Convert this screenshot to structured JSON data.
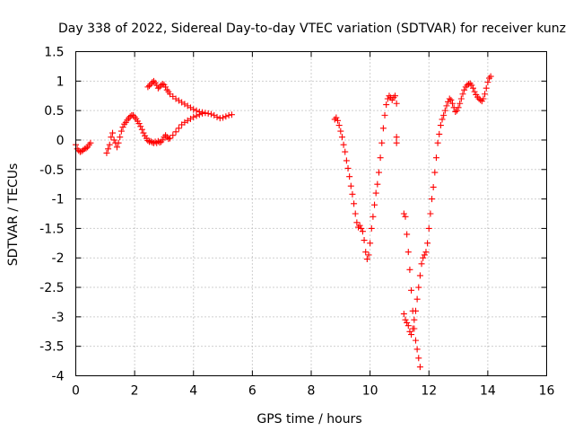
{
  "chart_data": {
    "type": "scatter",
    "title": "Day 338 of 2022, Sidereal Day-to-day VTEC variation (SDTVAR) for receiver kunz",
    "xlabel": "GPS time / hours",
    "ylabel": "SDTVAR / TECUs",
    "xlim": [
      0,
      16
    ],
    "ylim": [
      -4,
      1.5
    ],
    "xticks": [
      0,
      2,
      4,
      6,
      8,
      10,
      12,
      14,
      16
    ],
    "yticks": [
      -4,
      -3.5,
      -3,
      -2.5,
      -2,
      -1.5,
      -1,
      -0.5,
      0,
      0.5,
      1,
      1.5
    ],
    "grid": true,
    "marker": "+",
    "color": "#ff0000",
    "series": [
      {
        "name": "SDTVAR",
        "segments": [
          [
            [
              0.0,
              -0.08
            ],
            [
              0.05,
              -0.15
            ],
            [
              0.1,
              -0.18
            ],
            [
              0.15,
              -0.2
            ],
            [
              0.2,
              -0.19
            ],
            [
              0.25,
              -0.17
            ],
            [
              0.3,
              -0.15
            ],
            [
              0.35,
              -0.14
            ],
            [
              0.4,
              -0.12
            ],
            [
              0.45,
              -0.08
            ],
            [
              0.5,
              -0.05
            ]
          ],
          [
            [
              1.05,
              -0.22
            ],
            [
              1.1,
              -0.15
            ],
            [
              1.15,
              -0.08
            ],
            [
              1.2,
              0.05
            ],
            [
              1.25,
              0.12
            ],
            [
              1.3,
              0.0
            ],
            [
              1.35,
              -0.05
            ],
            [
              1.4,
              -0.12
            ],
            [
              1.45,
              -0.05
            ],
            [
              1.5,
              0.05
            ],
            [
              1.55,
              0.15
            ],
            [
              1.6,
              0.22
            ],
            [
              1.65,
              0.27
            ],
            [
              1.7,
              0.3
            ],
            [
              1.75,
              0.34
            ],
            [
              1.8,
              0.37
            ],
            [
              1.85,
              0.4
            ],
            [
              1.9,
              0.42
            ],
            [
              1.95,
              0.42
            ],
            [
              2.0,
              0.39
            ],
            [
              2.05,
              0.36
            ],
            [
              2.1,
              0.32
            ],
            [
              2.15,
              0.28
            ],
            [
              2.2,
              0.23
            ],
            [
              2.25,
              0.18
            ],
            [
              2.3,
              0.12
            ],
            [
              2.35,
              0.07
            ],
            [
              2.4,
              0.03
            ],
            [
              2.45,
              -0.01
            ],
            [
              2.5,
              -0.03
            ],
            [
              2.55,
              -0.02
            ],
            [
              2.6,
              -0.04
            ],
            [
              2.65,
              -0.05
            ],
            [
              2.7,
              -0.03
            ],
            [
              2.75,
              -0.05
            ],
            [
              2.8,
              -0.02
            ],
            [
              2.85,
              -0.04
            ],
            [
              2.9,
              -0.03
            ],
            [
              2.95,
              0.0
            ],
            [
              3.0,
              0.05
            ],
            [
              3.05,
              0.08
            ],
            [
              3.1,
              0.05
            ],
            [
              3.15,
              0.02
            ],
            [
              3.2,
              0.03
            ],
            [
              3.3,
              0.08
            ],
            [
              3.4,
              0.14
            ],
            [
              3.5,
              0.2
            ],
            [
              3.6,
              0.26
            ],
            [
              3.7,
              0.3
            ],
            [
              3.8,
              0.33
            ],
            [
              3.9,
              0.36
            ],
            [
              4.0,
              0.39
            ],
            [
              4.1,
              0.41
            ],
            [
              4.2,
              0.43
            ],
            [
              4.3,
              0.45
            ],
            [
              4.4,
              0.46
            ],
            [
              4.5,
              0.45
            ],
            [
              4.6,
              0.44
            ],
            [
              4.7,
              0.42
            ],
            [
              4.8,
              0.39
            ],
            [
              4.9,
              0.37
            ],
            [
              5.0,
              0.38
            ],
            [
              5.1,
              0.4
            ],
            [
              5.2,
              0.42
            ],
            [
              5.3,
              0.43
            ]
          ],
          [
            [
              2.45,
              0.9
            ],
            [
              2.5,
              0.92
            ],
            [
              2.55,
              0.95
            ],
            [
              2.6,
              0.98
            ],
            [
              2.65,
              1.0
            ],
            [
              2.7,
              0.97
            ],
            [
              2.75,
              0.93
            ],
            [
              2.8,
              0.88
            ],
            [
              2.85,
              0.9
            ],
            [
              2.9,
              0.93
            ],
            [
              2.95,
              0.95
            ],
            [
              3.0,
              0.94
            ],
            [
              3.05,
              0.9
            ],
            [
              3.1,
              0.85
            ],
            [
              3.15,
              0.82
            ],
            [
              3.2,
              0.78
            ],
            [
              3.3,
              0.74
            ],
            [
              3.4,
              0.7
            ],
            [
              3.5,
              0.67
            ],
            [
              3.6,
              0.64
            ],
            [
              3.7,
              0.61
            ],
            [
              3.8,
              0.58
            ],
            [
              3.9,
              0.55
            ],
            [
              4.0,
              0.52
            ],
            [
              4.1,
              0.5
            ],
            [
              4.2,
              0.48
            ],
            [
              4.3,
              0.47
            ]
          ],
          [
            [
              8.8,
              0.35
            ],
            [
              8.85,
              0.38
            ],
            [
              8.9,
              0.33
            ],
            [
              8.95,
              0.25
            ],
            [
              9.0,
              0.15
            ],
            [
              9.05,
              0.05
            ],
            [
              9.1,
              -0.08
            ],
            [
              9.15,
              -0.2
            ],
            [
              9.2,
              -0.35
            ],
            [
              9.25,
              -0.48
            ],
            [
              9.3,
              -0.62
            ],
            [
              9.35,
              -0.78
            ],
            [
              9.4,
              -0.92
            ],
            [
              9.45,
              -1.08
            ],
            [
              9.5,
              -1.25
            ],
            [
              9.55,
              -1.4
            ],
            [
              9.6,
              -1.48
            ],
            [
              9.65,
              -1.45
            ],
            [
              9.7,
              -1.5
            ],
            [
              9.75,
              -1.55
            ],
            [
              9.8,
              -1.7
            ],
            [
              9.85,
              -1.9
            ],
            [
              9.9,
              -2.02
            ],
            [
              9.95,
              -1.95
            ],
            [
              10.0,
              -1.75
            ],
            [
              10.05,
              -1.5
            ],
            [
              10.1,
              -1.3
            ],
            [
              10.15,
              -1.1
            ],
            [
              10.2,
              -0.9
            ],
            [
              10.25,
              -0.75
            ],
            [
              10.3,
              -0.55
            ],
            [
              10.35,
              -0.3
            ],
            [
              10.4,
              -0.05
            ],
            [
              10.45,
              0.2
            ],
            [
              10.5,
              0.42
            ],
            [
              10.55,
              0.6
            ],
            [
              10.6,
              0.7
            ],
            [
              10.65,
              0.75
            ],
            [
              10.7,
              0.72
            ],
            [
              10.75,
              0.68
            ],
            [
              10.8,
              0.72
            ],
            [
              10.85,
              0.75
            ],
            [
              10.9,
              0.62
            ],
            [
              10.9,
              -0.05
            ],
            [
              10.9,
              0.05
            ]
          ],
          [
            [
              11.15,
              -1.25
            ],
            [
              11.2,
              -1.3
            ],
            [
              11.25,
              -1.6
            ],
            [
              11.3,
              -1.9
            ],
            [
              11.35,
              -2.2
            ],
            [
              11.4,
              -2.55
            ],
            [
              11.45,
              -2.9
            ],
            [
              11.5,
              -3.2
            ],
            [
              11.55,
              -3.4
            ],
            [
              11.6,
              -3.55
            ],
            [
              11.65,
              -3.7
            ],
            [
              11.7,
              -3.85
            ],
            [
              11.15,
              -2.95
            ],
            [
              11.2,
              -3.05
            ],
            [
              11.25,
              -3.1
            ],
            [
              11.3,
              -3.15
            ],
            [
              11.35,
              -3.25
            ],
            [
              11.4,
              -3.3
            ],
            [
              11.45,
              -3.2
            ],
            [
              11.5,
              -3.05
            ],
            [
              11.55,
              -2.9
            ],
            [
              11.6,
              -2.7
            ],
            [
              11.65,
              -2.5
            ],
            [
              11.7,
              -2.3
            ],
            [
              11.75,
              -2.1
            ],
            [
              11.8,
              -2.0
            ],
            [
              11.85,
              -1.95
            ],
            [
              11.9,
              -1.9
            ],
            [
              11.95,
              -1.75
            ],
            [
              12.0,
              -1.5
            ],
            [
              12.05,
              -1.25
            ],
            [
              12.1,
              -1.0
            ],
            [
              12.15,
              -0.8
            ],
            [
              12.2,
              -0.55
            ],
            [
              12.25,
              -0.3
            ],
            [
              12.3,
              -0.05
            ],
            [
              12.35,
              0.1
            ],
            [
              12.4,
              0.25
            ],
            [
              12.45,
              0.35
            ],
            [
              12.5,
              0.42
            ],
            [
              12.55,
              0.5
            ],
            [
              12.6,
              0.58
            ],
            [
              12.65,
              0.65
            ],
            [
              12.7,
              0.7
            ],
            [
              12.75,
              0.68
            ],
            [
              12.8,
              0.62
            ],
            [
              12.85,
              0.55
            ],
            [
              12.9,
              0.48
            ],
            [
              12.95,
              0.5
            ],
            [
              13.0,
              0.55
            ],
            [
              13.05,
              0.62
            ],
            [
              13.1,
              0.7
            ],
            [
              13.15,
              0.78
            ],
            [
              13.2,
              0.85
            ],
            [
              13.25,
              0.9
            ],
            [
              13.3,
              0.93
            ],
            [
              13.35,
              0.95
            ],
            [
              13.4,
              0.96
            ],
            [
              13.45,
              0.93
            ],
            [
              13.5,
              0.88
            ],
            [
              13.55,
              0.82
            ],
            [
              13.6,
              0.77
            ],
            [
              13.65,
              0.73
            ],
            [
              13.7,
              0.7
            ],
            [
              13.75,
              0.68
            ],
            [
              13.8,
              0.66
            ],
            [
              13.85,
              0.7
            ],
            [
              13.9,
              0.78
            ],
            [
              13.95,
              0.88
            ],
            [
              14.0,
              0.98
            ],
            [
              14.05,
              1.05
            ],
            [
              14.1,
              1.08
            ]
          ]
        ]
      }
    ]
  }
}
